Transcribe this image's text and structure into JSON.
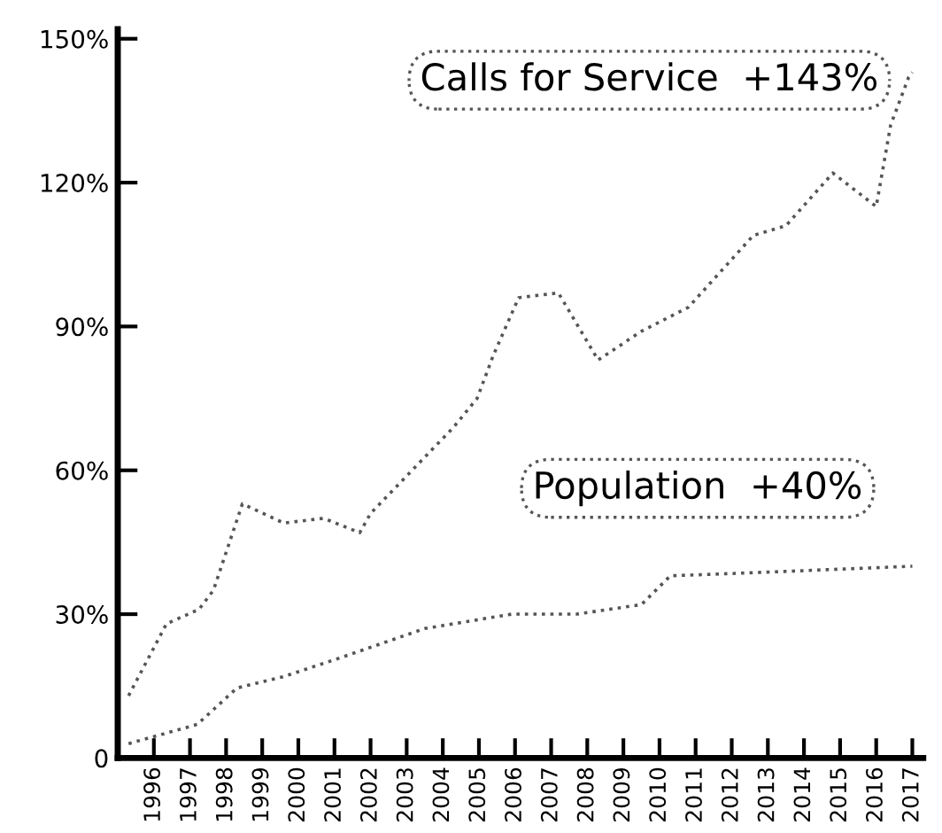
{
  "chart_data": {
    "type": "line",
    "line_style": "dotted",
    "marker": "none",
    "grid": false,
    "legend": false,
    "xlim": [
      1995,
      2017.3
    ],
    "xticks": [
      1996,
      1997,
      1998,
      1999,
      2000,
      2001,
      2002,
      2003,
      2004,
      2005,
      2006,
      2007,
      2008,
      2009,
      2010,
      2011,
      2012,
      2013,
      2014,
      2015,
      2016,
      2017
    ],
    "ylim": [
      0,
      152
    ],
    "yticks": [
      0,
      {
        "value": 30,
        "label": "30%"
      },
      {
        "value": 60,
        "label": "60%"
      },
      {
        "value": 90,
        "label": "90%"
      },
      {
        "value": 120,
        "label": "120%"
      },
      {
        "value": 150,
        "label": "150%"
      }
    ],
    "series": [
      {
        "name": "Calls for Service  +143%",
        "color": "#555555",
        "x": [
          1995.3,
          1996.35,
          1997.25,
          1997.65,
          1998.45,
          1999.6,
          2000.7,
          2001.7,
          2002.0,
          2004.3,
          2004.95,
          2005.4,
          2006.1,
          2007.2,
          2008.3,
          2009.5,
          2010.8,
          2012.6,
          2013.5,
          2014.8,
          2016.0,
          2016.4,
          2016.9,
          2017
        ],
        "values": [
          13,
          28,
          31,
          35,
          53,
          49,
          50,
          47,
          51,
          69,
          75,
          84,
          96,
          97,
          83,
          89,
          94,
          109,
          111,
          122,
          115,
          132,
          142,
          143
        ]
      },
      {
        "name": "Population  +40%",
        "color": "#555555",
        "x": [
          1995.3,
          1997.2,
          1998.3,
          1999.6,
          2001.2,
          2003.5,
          2005.9,
          2007.7,
          2009.5,
          2010.3,
          2012.1,
          2017
        ],
        "values": [
          3,
          7,
          14.6,
          17,
          21,
          27,
          30,
          30,
          32,
          38,
          38.5,
          40
        ]
      }
    ]
  }
}
